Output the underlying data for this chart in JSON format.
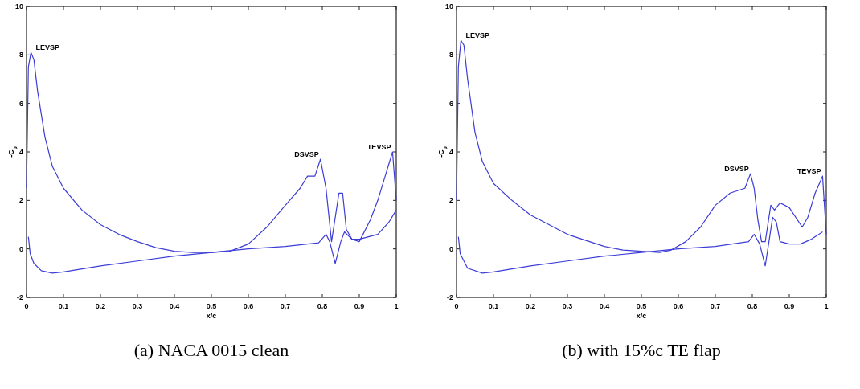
{
  "chart_data": [
    {
      "type": "line",
      "title": "(a) NACA 0015 clean",
      "xlabel": "x/c",
      "ylabel": "-C$_{p}$",
      "xlim": [
        0,
        1
      ],
      "ylim": [
        -2,
        10
      ],
      "xticks": [
        0,
        0.1,
        0.2,
        0.3,
        0.4,
        0.5,
        0.6,
        0.7,
        0.8,
        0.9,
        1
      ],
      "yticks": [
        -2,
        0,
        2,
        4,
        6,
        8,
        10
      ],
      "grid": false,
      "series": [
        {
          "color": "#3c3cd6",
          "x": [
            0,
            0.005,
            0.012,
            0.02,
            0.03,
            0.05,
            0.07,
            0.1,
            0.15,
            0.2,
            0.25,
            0.3,
            0.35,
            0.4,
            0.45,
            0.5,
            0.55,
            0.6,
            0.65,
            0.7,
            0.74,
            0.76,
            0.78,
            0.795,
            0.81,
            0.825,
            0.845,
            0.855,
            0.865,
            0.88,
            0.9,
            0.93,
            0.95,
            0.97,
            0.99,
            1
          ],
          "values": [
            2.5,
            7.5,
            8.1,
            7.8,
            6.5,
            4.6,
            3.4,
            2.5,
            1.6,
            1.0,
            0.6,
            0.3,
            0.05,
            -0.1,
            -0.15,
            -0.15,
            -0.1,
            0.2,
            0.9,
            1.8,
            2.5,
            3.0,
            3.0,
            3.7,
            2.5,
            0.3,
            2.3,
            2.3,
            0.8,
            0.4,
            0.3,
            1.2,
            2.0,
            3.0,
            4.0,
            2.0
          ]
        },
        {
          "color": "#3c3cd6",
          "x": [
            0.005,
            0.01,
            0.02,
            0.04,
            0.07,
            0.1,
            0.2,
            0.3,
            0.4,
            0.5,
            0.6,
            0.7,
            0.79,
            0.81,
            0.82,
            0.835,
            0.85,
            0.86,
            0.88,
            0.9,
            0.95,
            0.98,
            1
          ],
          "values": [
            0.5,
            -0.2,
            -0.6,
            -0.9,
            -1.0,
            -0.95,
            -0.7,
            -0.5,
            -0.3,
            -0.15,
            0.0,
            0.1,
            0.25,
            0.6,
            0.3,
            -0.6,
            0.3,
            0.7,
            0.4,
            0.4,
            0.6,
            1.1,
            1.6
          ]
        }
      ],
      "annotations": [
        {
          "text": "LEVSP",
          "x": 0.012,
          "y": 8.1
        },
        {
          "text": "DSVSP",
          "x": 0.795,
          "y": 3.7
        },
        {
          "text": "TEVSP",
          "x": 0.99,
          "y": 4.0
        }
      ]
    },
    {
      "type": "line",
      "title": "(b) with 15%c TE flap",
      "xlabel": "x/c",
      "ylabel": "-C$_{p}$",
      "xlim": [
        0,
        1
      ],
      "ylim": [
        -2,
        10
      ],
      "xticks": [
        0,
        0.1,
        0.2,
        0.3,
        0.4,
        0.5,
        0.6,
        0.7,
        0.8,
        0.9,
        1
      ],
      "yticks": [
        -2,
        0,
        2,
        4,
        6,
        8,
        10
      ],
      "grid": false,
      "series": [
        {
          "color": "#3c3cd6",
          "x": [
            0,
            0.005,
            0.012,
            0.02,
            0.03,
            0.05,
            0.07,
            0.1,
            0.15,
            0.2,
            0.25,
            0.3,
            0.35,
            0.4,
            0.45,
            0.5,
            0.55,
            0.58,
            0.62,
            0.66,
            0.7,
            0.74,
            0.78,
            0.795,
            0.805,
            0.815,
            0.825,
            0.835,
            0.85,
            0.86,
            0.875,
            0.9,
            0.935,
            0.95,
            0.97,
            0.99,
            1
          ],
          "values": [
            2.0,
            7.5,
            8.6,
            8.4,
            7.0,
            4.8,
            3.6,
            2.7,
            2.0,
            1.4,
            1.0,
            0.6,
            0.35,
            0.1,
            -0.05,
            -0.1,
            -0.15,
            -0.05,
            0.3,
            0.9,
            1.8,
            2.3,
            2.5,
            3.1,
            2.5,
            1.2,
            0.3,
            0.3,
            1.8,
            1.6,
            1.9,
            1.7,
            0.9,
            1.3,
            2.3,
            3.0,
            0.6
          ]
        },
        {
          "color": "#3c3cd6",
          "x": [
            0.005,
            0.01,
            0.03,
            0.07,
            0.1,
            0.2,
            0.3,
            0.4,
            0.5,
            0.6,
            0.7,
            0.79,
            0.805,
            0.82,
            0.835,
            0.845,
            0.855,
            0.865,
            0.875,
            0.9,
            0.93,
            0.96,
            0.99
          ],
          "values": [
            0.5,
            -0.2,
            -0.8,
            -1.0,
            -0.95,
            -0.7,
            -0.5,
            -0.3,
            -0.15,
            0.0,
            0.1,
            0.3,
            0.6,
            0.2,
            -0.7,
            0.3,
            1.3,
            1.1,
            0.3,
            0.2,
            0.2,
            0.4,
            0.7
          ]
        }
      ],
      "annotations": [
        {
          "text": "LEVSP",
          "x": 0.012,
          "y": 8.6
        },
        {
          "text": "DSVSP",
          "x": 0.795,
          "y": 3.1
        },
        {
          "text": "TEVSP",
          "x": 0.99,
          "y": 3.0
        }
      ]
    }
  ]
}
